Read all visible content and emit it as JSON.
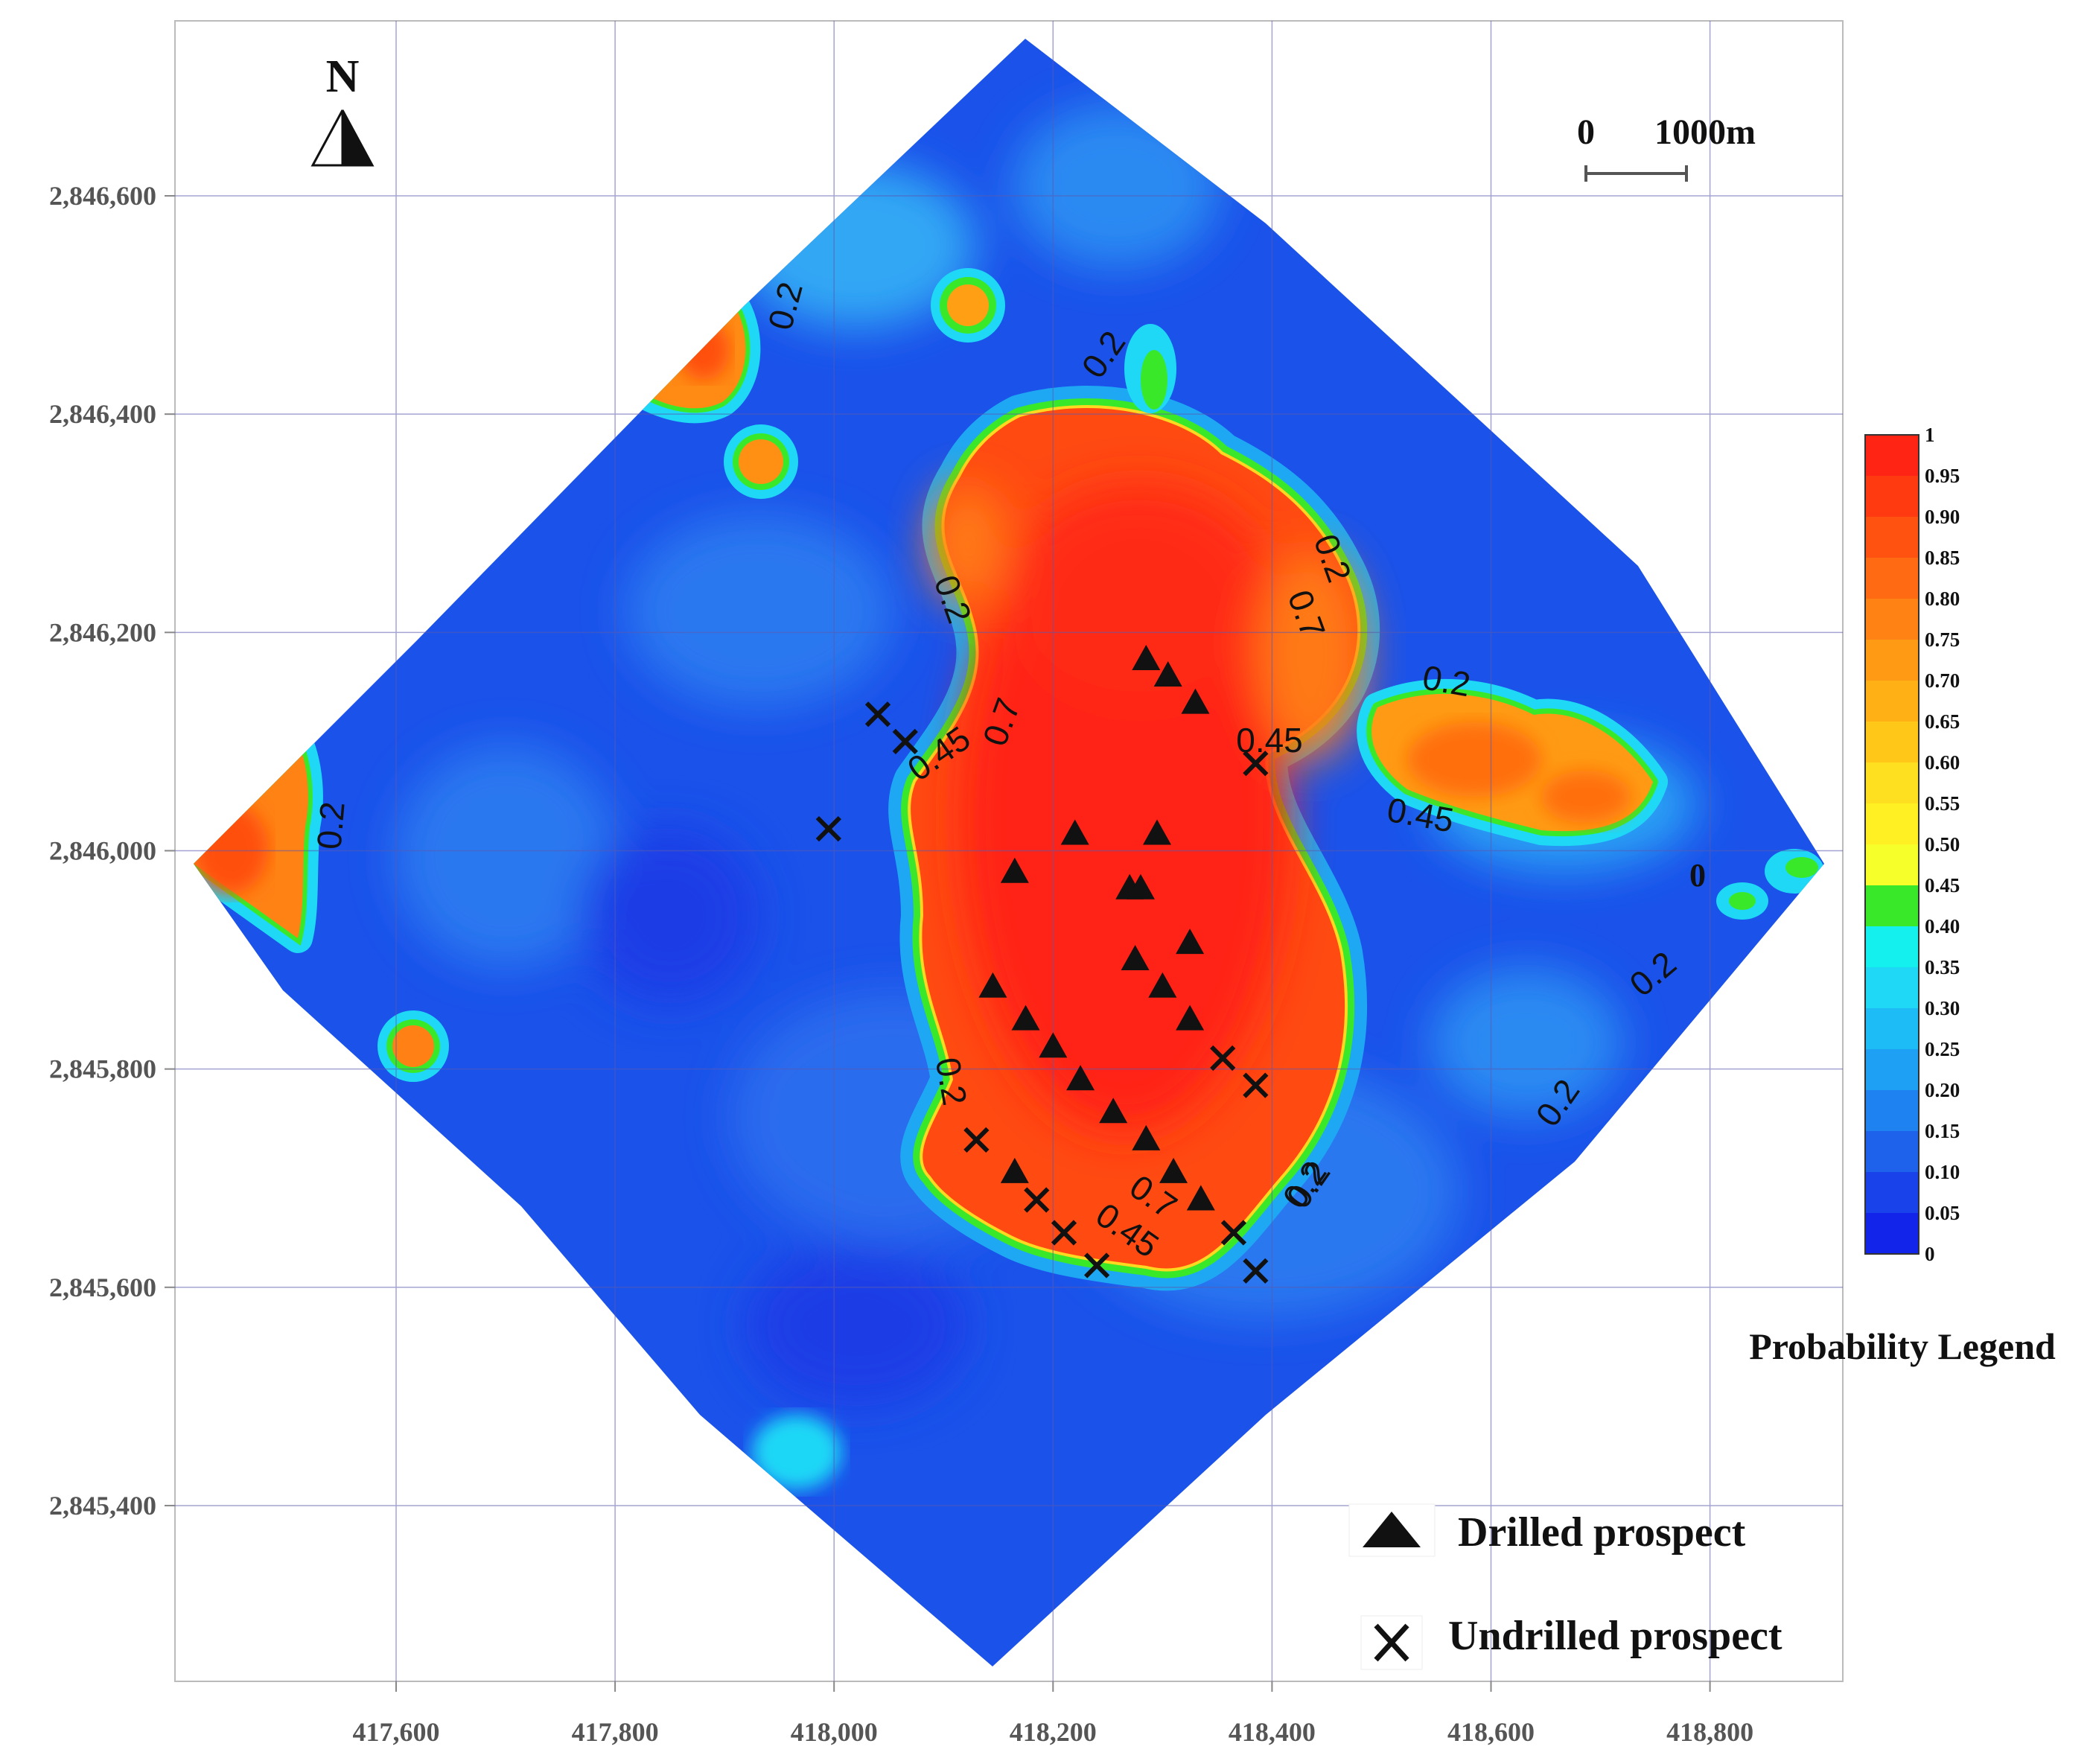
{
  "north_label": "N",
  "scale_bar": {
    "start_label": "0",
    "end_label": "1000m"
  },
  "x_ticks": [
    "417,600",
    "417,800",
    "418,000",
    "418,200",
    "418,400",
    "418,600",
    "418,800"
  ],
  "y_ticks": [
    "2,846,600",
    "2,846,400",
    "2,846,200",
    "2,846,000",
    "2,845,800",
    "2,845,600",
    "2,845,400"
  ],
  "legend": {
    "title": "Probability Legend",
    "stops": [
      "1",
      "0.95",
      "0.90",
      "0.85",
      "0.80",
      "0.75",
      "0.70",
      "0.65",
      "0.60",
      "0.55",
      "0.50",
      "0.45",
      "0.40",
      "0.35",
      "0.30",
      "0.25",
      "0.20",
      "0.15",
      "0.10",
      "0.05",
      "0"
    ],
    "colors": [
      "#ff2414",
      "#ff3a10",
      "#ff5210",
      "#ff6a12",
      "#ff8214",
      "#ff9a14",
      "#ffb014",
      "#ffc818",
      "#ffe020",
      "#fff024",
      "#f6ff2a",
      "#3ae82a",
      "#14f0ee",
      "#1ed8f6",
      "#1ebcf6",
      "#1ea0f4",
      "#1e82f0",
      "#1e62ec",
      "#1a42ea",
      "#1224ea"
    ]
  },
  "symbol_legend": {
    "drilled": "Drilled prospect",
    "undrilled": "Undrilled prospect"
  },
  "contour_labels": [
    "0.2",
    "0.2",
    "0.2",
    "0.2",
    "0.45",
    "0.7",
    "0.2",
    "0.45",
    "0.7",
    "0.2",
    "0.45",
    "0.2",
    "0.2",
    "0.2",
    "0.2",
    "0.7",
    "0.45",
    "0.2",
    "0"
  ],
  "drilled_prospects": [
    {
      "x": 418285,
      "y": 2846175
    },
    {
      "x": 418305,
      "y": 2846160
    },
    {
      "x": 418330,
      "y": 2846135
    },
    {
      "x": 418220,
      "y": 2846015
    },
    {
      "x": 418295,
      "y": 2846015
    },
    {
      "x": 418165,
      "y": 2845980
    },
    {
      "x": 418270,
      "y": 2845965
    },
    {
      "x": 418280,
      "y": 2845965
    },
    {
      "x": 418325,
      "y": 2845915
    },
    {
      "x": 418275,
      "y": 2845900
    },
    {
      "x": 418300,
      "y": 2845875
    },
    {
      "x": 418145,
      "y": 2845875
    },
    {
      "x": 418175,
      "y": 2845845
    },
    {
      "x": 418325,
      "y": 2845845
    },
    {
      "x": 418200,
      "y": 2845820
    },
    {
      "x": 418225,
      "y": 2845790
    },
    {
      "x": 418255,
      "y": 2845760
    },
    {
      "x": 418285,
      "y": 2845735
    },
    {
      "x": 418165,
      "y": 2845705
    },
    {
      "x": 418310,
      "y": 2845705
    },
    {
      "x": 418335,
      "y": 2845680
    }
  ],
  "undrilled_prospects": [
    {
      "x": 418040,
      "y": 2846125
    },
    {
      "x": 418065,
      "y": 2846100
    },
    {
      "x": 418385,
      "y": 2846080
    },
    {
      "x": 417995,
      "y": 2846020
    },
    {
      "x": 418355,
      "y": 2845810
    },
    {
      "x": 418385,
      "y": 2845785
    },
    {
      "x": 418130,
      "y": 2845735
    },
    {
      "x": 418185,
      "y": 2845680
    },
    {
      "x": 418210,
      "y": 2845650
    },
    {
      "x": 418240,
      "y": 2845620
    },
    {
      "x": 418365,
      "y": 2845650
    },
    {
      "x": 418385,
      "y": 2845615
    }
  ]
}
